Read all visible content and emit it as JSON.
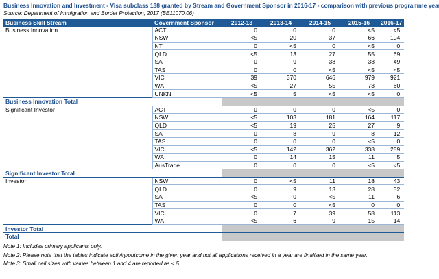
{
  "header": {
    "title": "Business Innovation and Investment - Visa subclass 188 granted by Stream and Government Sponsor in 2016-17 - comparison with previous programme year",
    "source": "Source: Department of Immigration and Border Protection, 2017 (BE11070.06)"
  },
  "table": {
    "columns": [
      "Business Skill Stream",
      "Government Sponsor",
      "2012-13",
      "2013-14",
      "2014-15",
      "2015-16",
      "2016-17"
    ],
    "groups": [
      {
        "stream": "Business Innovation",
        "total": "Business Innovation Total",
        "rows": [
          [
            "ACT",
            "0",
            "0",
            "0",
            "<5",
            "<5"
          ],
          [
            "NSW",
            "<5",
            "20",
            "37",
            "66",
            "104"
          ],
          [
            "NT",
            "0",
            "<5",
            "0",
            "<5",
            "0"
          ],
          [
            "QLD",
            "<5",
            "13",
            "27",
            "55",
            "69"
          ],
          [
            "SA",
            "0",
            "9",
            "38",
            "38",
            "49"
          ],
          [
            "TAS",
            "0",
            "0",
            "<5",
            "<5",
            "<5"
          ],
          [
            "VIC",
            "39",
            "370",
            "646",
            "979",
            "921"
          ],
          [
            "WA",
            "<5",
            "27",
            "55",
            "73",
            "60"
          ],
          [
            "UNKN",
            "<5",
            "5",
            "<5",
            "<5",
            "0"
          ]
        ]
      },
      {
        "stream": "Significant Investor",
        "total": "Significant Investor Total",
        "rows": [
          [
            "ACT",
            "0",
            "0",
            "0",
            "<5",
            "0"
          ],
          [
            "NSW",
            "<5",
            "103",
            "181",
            "164",
            "117"
          ],
          [
            "QLD",
            "<5",
            "19",
            "25",
            "27",
            "9"
          ],
          [
            "SA",
            "0",
            "8",
            "9",
            "8",
            "12"
          ],
          [
            "TAS",
            "0",
            "0",
            "0",
            "<5",
            "0"
          ],
          [
            "VIC",
            "<5",
            "142",
            "362",
            "338",
            "259"
          ],
          [
            "WA",
            "0",
            "14",
            "15",
            "11",
            "5"
          ],
          [
            "AusTrade",
            "0",
            "0",
            "0",
            "<5",
            "<5"
          ]
        ]
      },
      {
        "stream": "Investor",
        "total": "Investor Total",
        "rows": [
          [
            "NSW",
            "0",
            "<5",
            "11",
            "18",
            "43"
          ],
          [
            "QLD",
            "0",
            "9",
            "13",
            "28",
            "32"
          ],
          [
            "SA",
            "<5",
            "0",
            "<5",
            "11",
            "6"
          ],
          [
            "TAS",
            "0",
            "0",
            "<5",
            "0",
            "0"
          ],
          [
            "VIC",
            "0",
            "7",
            "39",
            "58",
            "113"
          ],
          [
            "WA",
            "<5",
            "6",
            "9",
            "15",
            "14"
          ]
        ]
      }
    ],
    "grand_total": "Total"
  },
  "notes": [
    "Note 1: Includes primary applicants only.",
    "Note 2: Please note that the tables indicate activity/outcome in the given year and not all applications received in a year are finalised in the same year.",
    "Note 3: Small cell sizes with values between 1 and 4 are reported as < 5."
  ]
}
